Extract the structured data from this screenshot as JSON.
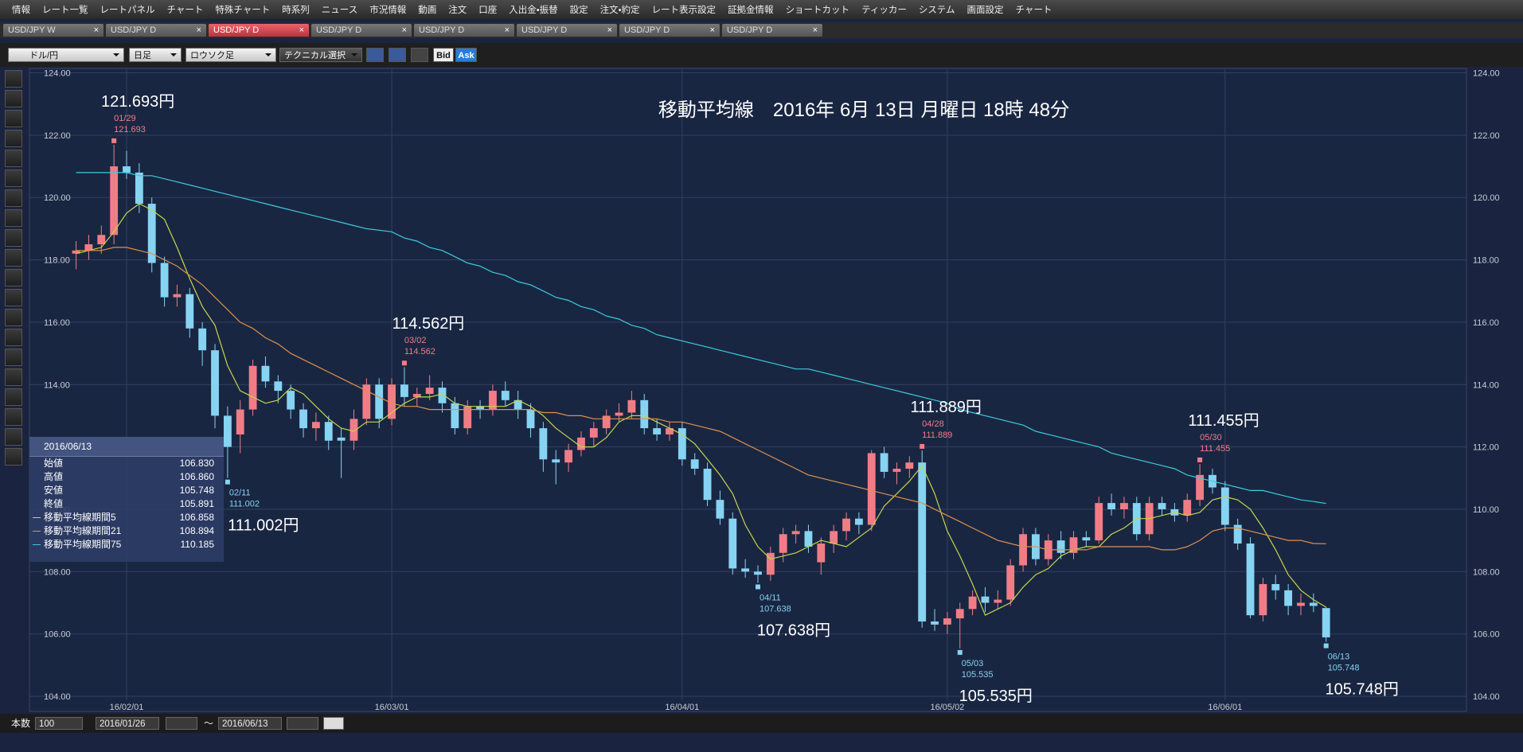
{
  "menu": {
    "items": [
      "情報",
      "レート一覧",
      "レートパネル",
      "チャート",
      "特殊チャート",
      "時系列",
      "ニュース",
      "市況情報",
      "動画",
      "注文",
      "口座",
      "入出金・振替",
      "設定",
      "注文・約定",
      "レート表示設定",
      "証拠金情報",
      "ショートカット",
      "ティッカー",
      "システム",
      "画面設定",
      "チャート"
    ]
  },
  "tabs": {
    "items": [
      "USD/JPY W",
      "USD/JPY D",
      "USD/JPY D",
      "USD/JPY D",
      "USD/JPY D",
      "USD/JPY D",
      "USD/JPY D",
      "USD/JPY D"
    ],
    "active": 2
  },
  "toolbar": {
    "pair": "ドル/円",
    "period": "日足",
    "style": "ロウソク足",
    "technical": "テクニカル選択",
    "bid": "Bid",
    "ask": "Ask"
  },
  "bottom_bar": {
    "count_label": "本数",
    "count": "100",
    "from": "2016/01/26",
    "sep": "～",
    "to": "2016/06/13"
  },
  "info_panel": {
    "date": "2016/06/13",
    "rows": [
      {
        "label": "始値",
        "value": "106.830"
      },
      {
        "label": "高値",
        "value": "106.860"
      },
      {
        "label": "安値",
        "value": "105.748"
      },
      {
        "label": "終値",
        "value": "105.891"
      }
    ]
  },
  "chart_data": {
    "type": "candlestick",
    "title": "移動平均線　2016年 6月 13日 月曜日 18時 48分",
    "ylim": [
      104,
      124
    ],
    "yticks": [
      {
        "value": 104,
        "label": "104.00"
      },
      {
        "value": 106,
        "label": "106.00"
      },
      {
        "value": 108,
        "label": "108.00"
      },
      {
        "value": 110,
        "label": "110.00"
      },
      {
        "value": 112,
        "label": "112.00"
      },
      {
        "value": 114,
        "label": "114.00"
      },
      {
        "value": 116,
        "label": "116.00"
      },
      {
        "value": 118,
        "label": "118.00"
      },
      {
        "value": 120,
        "label": "120.00"
      },
      {
        "value": 122,
        "label": "122.00"
      },
      {
        "value": 124,
        "label": "124.00"
      }
    ],
    "grid": true,
    "up_color": "#f07d86",
    "down_color": "#86d3f2",
    "categories": [
      null,
      null,
      null,
      null,
      "16/02/01",
      null,
      null,
      null,
      null,
      null,
      null,
      null,
      null,
      null,
      null,
      null,
      null,
      null,
      null,
      null,
      null,
      null,
      null,
      null,
      null,
      "16/03/01",
      null,
      null,
      null,
      null,
      null,
      null,
      null,
      null,
      null,
      null,
      null,
      null,
      null,
      null,
      null,
      null,
      null,
      null,
      null,
      null,
      null,
      null,
      "16/04/01",
      null,
      null,
      null,
      null,
      null,
      null,
      null,
      null,
      null,
      null,
      null,
      null,
      null,
      null,
      null,
      null,
      null,
      null,
      null,
      null,
      "16/05/02",
      null,
      null,
      null,
      null,
      null,
      null,
      null,
      null,
      null,
      null,
      null,
      null,
      null,
      null,
      null,
      null,
      null,
      null,
      null,
      null,
      null,
      "16/06/01",
      null,
      null,
      null,
      null,
      null,
      null,
      null,
      null
    ],
    "candles": [
      [
        118.2,
        118.6,
        117.7,
        118.3
      ],
      [
        118.3,
        118.8,
        118.0,
        118.5
      ],
      [
        118.5,
        119.1,
        118.2,
        118.8
      ],
      [
        118.8,
        121.693,
        118.5,
        121.0
      ],
      [
        121.0,
        121.5,
        120.6,
        120.8
      ],
      [
        120.8,
        121.1,
        119.5,
        119.8
      ],
      [
        119.8,
        120.0,
        117.6,
        117.9
      ],
      [
        117.9,
        118.1,
        116.5,
        116.8
      ],
      [
        116.8,
        117.2,
        116.5,
        116.9
      ],
      [
        116.9,
        117.1,
        115.5,
        115.8
      ],
      [
        115.8,
        116.0,
        114.6,
        115.1
      ],
      [
        115.1,
        115.3,
        112.6,
        113.0
      ],
      [
        113.0,
        113.3,
        111.002,
        112.0
      ],
      [
        112.4,
        113.5,
        111.8,
        113.2
      ],
      [
        113.2,
        114.8,
        113.0,
        114.6
      ],
      [
        114.6,
        114.9,
        113.9,
        114.1
      ],
      [
        114.1,
        114.3,
        113.4,
        113.8
      ],
      [
        113.8,
        114.0,
        112.9,
        113.2
      ],
      [
        113.2,
        113.4,
        112.3,
        112.6
      ],
      [
        112.6,
        113.1,
        112.2,
        112.8
      ],
      [
        112.8,
        113.0,
        111.9,
        112.2
      ],
      [
        112.3,
        112.6,
        111.0,
        112.2
      ],
      [
        112.2,
        113.2,
        111.9,
        112.9
      ],
      [
        112.9,
        114.2,
        112.7,
        114.0
      ],
      [
        114.0,
        114.2,
        112.6,
        112.9
      ],
      [
        112.9,
        114.2,
        112.7,
        114.0
      ],
      [
        114.0,
        114.562,
        113.3,
        113.6
      ],
      [
        113.6,
        113.9,
        113.3,
        113.7
      ],
      [
        113.7,
        114.3,
        113.5,
        113.9
      ],
      [
        113.9,
        114.1,
        113.1,
        113.4
      ],
      [
        113.4,
        113.6,
        112.4,
        112.6
      ],
      [
        112.6,
        113.5,
        112.4,
        113.3
      ],
      [
        113.3,
        113.5,
        112.9,
        113.2
      ],
      [
        113.2,
        114.0,
        113.0,
        113.8
      ],
      [
        113.8,
        114.1,
        113.3,
        113.5
      ],
      [
        113.5,
        113.8,
        112.9,
        113.2
      ],
      [
        113.2,
        113.4,
        112.3,
        112.6
      ],
      [
        112.6,
        112.8,
        111.2,
        111.6
      ],
      [
        111.6,
        111.9,
        110.8,
        111.5
      ],
      [
        111.5,
        112.1,
        111.2,
        111.9
      ],
      [
        111.9,
        112.5,
        111.7,
        112.3
      ],
      [
        112.3,
        112.8,
        112.0,
        112.6
      ],
      [
        112.6,
        113.2,
        112.4,
        113.0
      ],
      [
        113.0,
        113.4,
        112.8,
        113.1
      ],
      [
        113.1,
        113.8,
        112.9,
        113.5
      ],
      [
        113.5,
        113.7,
        112.4,
        112.6
      ],
      [
        112.6,
        112.9,
        112.2,
        112.4
      ],
      [
        112.4,
        112.8,
        112.2,
        112.6
      ],
      [
        112.6,
        112.8,
        111.4,
        111.6
      ],
      [
        111.6,
        111.8,
        111.1,
        111.3
      ],
      [
        111.3,
        111.5,
        110.1,
        110.3
      ],
      [
        110.3,
        110.6,
        109.5,
        109.7
      ],
      [
        109.7,
        109.9,
        107.9,
        108.1
      ],
      [
        108.1,
        108.4,
        107.8,
        108.0
      ],
      [
        108.0,
        108.2,
        107.638,
        107.9
      ],
      [
        107.9,
        108.8,
        107.7,
        108.6
      ],
      [
        108.6,
        109.4,
        108.3,
        109.2
      ],
      [
        109.2,
        109.5,
        108.9,
        109.3
      ],
      [
        109.3,
        109.5,
        108.6,
        108.8
      ],
      [
        108.3,
        109.1,
        107.9,
        108.9
      ],
      [
        108.9,
        109.5,
        108.6,
        109.3
      ],
      [
        109.3,
        109.9,
        109.0,
        109.7
      ],
      [
        109.7,
        109.9,
        109.2,
        109.5
      ],
      [
        109.5,
        111.9,
        109.3,
        111.8
      ],
      [
        111.8,
        112.0,
        111.0,
        111.2
      ],
      [
        111.2,
        111.5,
        110.8,
        111.3
      ],
      [
        111.3,
        111.7,
        111.0,
        111.5
      ],
      [
        111.5,
        111.889,
        106.2,
        106.4
      ],
      [
        106.4,
        106.8,
        106.1,
        106.3
      ],
      [
        106.3,
        106.7,
        106.0,
        106.5
      ],
      [
        106.5,
        107.0,
        105.535,
        106.8
      ],
      [
        106.8,
        107.4,
        106.6,
        107.2
      ],
      [
        107.2,
        107.5,
        106.7,
        107.0
      ],
      [
        107.0,
        107.4,
        106.8,
        107.1
      ],
      [
        107.1,
        108.4,
        106.9,
        108.2
      ],
      [
        108.2,
        109.4,
        108.0,
        109.2
      ],
      [
        109.2,
        109.4,
        108.2,
        108.4
      ],
      [
        108.4,
        109.2,
        108.2,
        109.0
      ],
      [
        109.0,
        109.3,
        108.4,
        108.6
      ],
      [
        108.6,
        109.3,
        108.4,
        109.1
      ],
      [
        109.1,
        109.3,
        108.8,
        109.0
      ],
      [
        109.0,
        110.4,
        108.9,
        110.2
      ],
      [
        110.2,
        110.5,
        109.8,
        110.0
      ],
      [
        110.0,
        110.4,
        109.7,
        110.2
      ],
      [
        110.2,
        110.4,
        109.0,
        109.2
      ],
      [
        109.2,
        110.4,
        109.0,
        110.2
      ],
      [
        110.2,
        110.4,
        109.8,
        110.0
      ],
      [
        110.0,
        110.2,
        109.6,
        109.8
      ],
      [
        109.8,
        110.5,
        109.6,
        110.3
      ],
      [
        110.3,
        111.455,
        110.1,
        111.1
      ],
      [
        111.1,
        111.3,
        110.5,
        110.7
      ],
      [
        110.7,
        110.9,
        109.3,
        109.5
      ],
      [
        109.5,
        109.7,
        108.7,
        108.9
      ],
      [
        108.9,
        109.1,
        106.5,
        106.6
      ],
      [
        106.6,
        107.8,
        106.4,
        107.6
      ],
      [
        107.6,
        107.9,
        107.1,
        107.4
      ],
      [
        107.4,
        107.6,
        106.6,
        106.9
      ],
      [
        106.9,
        107.3,
        106.6,
        107.0
      ],
      [
        107.0,
        107.3,
        106.7,
        106.9
      ],
      [
        106.83,
        106.86,
        105.748,
        105.891
      ]
    ],
    "series": [
      {
        "name": "移動平均線期間5",
        "color": "#c5d64c",
        "values": [
          118.2,
          118.3,
          118.4,
          118.9,
          119.5,
          119.8,
          119.6,
          119.3,
          118.4,
          117.4,
          116.5,
          115.9,
          114.6,
          113.8,
          113.6,
          113.4,
          113.5,
          113.9,
          113.7,
          113.3,
          112.9,
          112.6,
          112.5,
          112.8,
          112.8,
          113.1,
          113.4,
          113.6,
          113.6,
          113.7,
          113.4,
          113.3,
          113.3,
          113.3,
          113.3,
          113.5,
          113.3,
          113.0,
          112.6,
          112.3,
          112.0,
          112.0,
          112.3,
          112.8,
          113.0,
          113.0,
          112.8,
          112.6,
          112.4,
          112.1,
          111.6,
          111.1,
          110.5,
          109.5,
          108.8,
          108.4,
          108.5,
          108.6,
          108.8,
          109.0,
          108.9,
          108.8,
          109.1,
          109.4,
          110.1,
          110.5,
          110.9,
          111.4,
          110.5,
          109.3,
          108.5,
          107.6,
          106.6,
          106.8,
          107.0,
          107.5,
          107.9,
          108.1,
          108.5,
          108.7,
          108.8,
          108.8,
          109.2,
          109.4,
          109.7,
          109.7,
          109.8,
          109.9,
          109.8,
          109.9,
          110.3,
          110.4,
          110.3,
          110.0,
          109.4,
          108.7,
          107.9,
          107.4,
          107.1,
          106.858
        ]
      },
      {
        "name": "移動平均線期間21",
        "color": "#e0904a",
        "values": [
          118.3,
          118.3,
          118.3,
          118.4,
          118.4,
          118.3,
          118.2,
          118.0,
          117.8,
          117.5,
          117.2,
          116.8,
          116.4,
          116.0,
          115.8,
          115.5,
          115.3,
          115.0,
          114.8,
          114.6,
          114.4,
          114.2,
          114.0,
          113.8,
          113.6,
          113.4,
          113.3,
          113.3,
          113.2,
          113.2,
          113.2,
          113.2,
          113.2,
          113.2,
          113.2,
          113.2,
          113.2,
          113.1,
          113.1,
          113.0,
          113.0,
          112.9,
          112.9,
          112.9,
          112.9,
          112.9,
          112.9,
          112.8,
          112.8,
          112.7,
          112.6,
          112.5,
          112.3,
          112.1,
          111.9,
          111.7,
          111.5,
          111.3,
          111.1,
          111.0,
          110.9,
          110.8,
          110.7,
          110.6,
          110.5,
          110.4,
          110.3,
          110.2,
          110.0,
          109.8,
          109.6,
          109.4,
          109.2,
          109.0,
          108.9,
          108.8,
          108.8,
          108.7,
          108.7,
          108.7,
          108.7,
          108.8,
          108.8,
          108.8,
          108.8,
          108.8,
          108.7,
          108.7,
          108.8,
          109.0,
          109.3,
          109.4,
          109.4,
          109.3,
          109.2,
          109.1,
          109.0,
          109.0,
          108.9,
          108.894
        ]
      },
      {
        "name": "移動平均線期間75",
        "color": "#3ccbdc",
        "values": [
          120.8,
          120.8,
          120.8,
          120.8,
          120.8,
          120.7,
          120.7,
          120.6,
          120.5,
          120.4,
          120.3,
          120.2,
          120.1,
          120.0,
          119.9,
          119.8,
          119.7,
          119.6,
          119.5,
          119.4,
          119.3,
          119.2,
          119.1,
          119.0,
          118.95,
          118.9,
          118.7,
          118.6,
          118.4,
          118.3,
          118.1,
          117.9,
          117.8,
          117.6,
          117.5,
          117.3,
          117.2,
          117.0,
          116.8,
          116.7,
          116.5,
          116.4,
          116.2,
          116.1,
          115.9,
          115.8,
          115.6,
          115.5,
          115.4,
          115.3,
          115.2,
          115.1,
          115.0,
          114.9,
          114.8,
          114.7,
          114.6,
          114.5,
          114.5,
          114.4,
          114.3,
          114.2,
          114.1,
          114.0,
          113.9,
          113.8,
          113.7,
          113.6,
          113.5,
          113.4,
          113.2,
          113.1,
          113.0,
          112.9,
          112.8,
          112.7,
          112.5,
          112.4,
          112.3,
          112.2,
          112.1,
          112.0,
          111.8,
          111.7,
          111.6,
          111.5,
          111.4,
          111.3,
          111.1,
          111.0,
          110.9,
          110.8,
          110.7,
          110.6,
          110.6,
          110.5,
          110.4,
          110.3,
          110.25,
          110.185
        ]
      }
    ],
    "annotations": [
      {
        "kind": "high",
        "date": "01/29",
        "value": 121.693,
        "label": "121.693円"
      },
      {
        "kind": "low",
        "date": "02/11",
        "value": 111.002,
        "label": "111.002円"
      },
      {
        "kind": "high",
        "date": "03/02",
        "value": 114.562,
        "label": "114.562円"
      },
      {
        "kind": "low",
        "date": "04/11",
        "value": 107.638,
        "label": "107.638円"
      },
      {
        "kind": "high",
        "date": "04/28",
        "value": 111.889,
        "label": "111.889円"
      },
      {
        "kind": "low",
        "date": "05/03",
        "value": 105.535,
        "label": "105.535円"
      },
      {
        "kind": "high",
        "date": "05/30",
        "value": 111.455,
        "label": "111.455円"
      },
      {
        "kind": "low",
        "date": "06/13",
        "value": 105.748,
        "label": "105.748円"
      }
    ]
  }
}
